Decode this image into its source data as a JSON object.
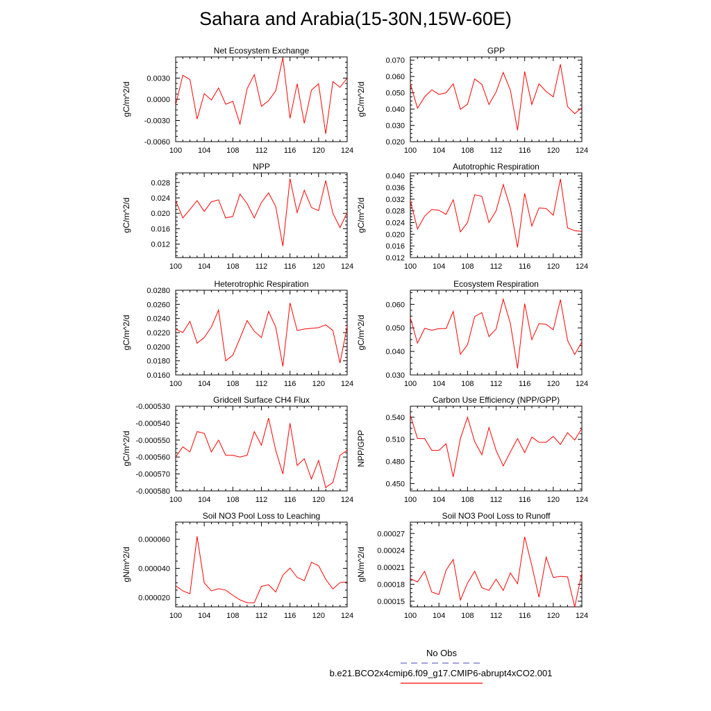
{
  "title": "Sahara and Arabia(15-30N,15W-60E)",
  "colors": {
    "series": "#ff0000",
    "obs": "#6a6ac8",
    "axis": "#000000"
  },
  "legend": {
    "obs_label": "No Obs",
    "case_label": "b.e21.BCO2x4cmip6.f09_g17.CMIP6-abrupt4xCO2.001"
  },
  "chart_data": [
    {
      "type": "line",
      "title": "Net Ecosystem Exchange",
      "ylabel": "gC/m^2/d",
      "xlabel": "",
      "xlim": [
        100,
        124
      ],
      "ylim": [
        -0.006,
        0.006
      ],
      "x_ticks": [
        "100",
        "104",
        "108",
        "112",
        "116",
        "120",
        "124"
      ],
      "y_ticks": [
        {
          "v": 0.003,
          "label": "0.0030"
        },
        {
          "v": 0.0,
          "label": "0.0000"
        },
        {
          "v": -0.003,
          "label": "-0.0030"
        },
        {
          "v": -0.006,
          "label": "-0.0060"
        }
      ],
      "x": [
        100,
        101,
        102,
        103,
        104,
        105,
        106,
        107,
        108,
        109,
        110,
        111,
        112,
        113,
        114,
        115,
        116,
        117,
        118,
        119,
        120,
        121,
        122,
        123,
        124
      ],
      "values": [
        -0.0008,
        0.0034,
        0.0028,
        -0.0028,
        0.0008,
        -0.0001,
        0.0016,
        -0.0007,
        -0.0003,
        -0.0035,
        0.0015,
        0.0035,
        -0.001,
        -0.0002,
        0.0012,
        0.0059,
        -0.0027,
        0.0022,
        -0.0034,
        0.0013,
        0.0022,
        -0.0049,
        0.0025,
        0.0017,
        0.003
      ]
    },
    {
      "type": "line",
      "title": "GPP",
      "ylabel": "gC/m^2/d",
      "xlabel": "",
      "xlim": [
        100,
        124
      ],
      "ylim": [
        0.02,
        0.072
      ],
      "x_ticks": [
        "100",
        "104",
        "108",
        "112",
        "116",
        "120",
        "124"
      ],
      "y_ticks": [
        {
          "v": 0.07,
          "label": "0.070"
        },
        {
          "v": 0.06,
          "label": "0.060"
        },
        {
          "v": 0.05,
          "label": "0.050"
        },
        {
          "v": 0.04,
          "label": "0.040"
        },
        {
          "v": 0.03,
          "label": "0.030"
        },
        {
          "v": 0.02,
          "label": "0.020"
        }
      ],
      "x": [
        100,
        101,
        102,
        103,
        104,
        105,
        106,
        107,
        108,
        109,
        110,
        111,
        112,
        113,
        114,
        115,
        116,
        117,
        118,
        119,
        120,
        121,
        122,
        123,
        124
      ],
      "values": [
        0.0555,
        0.0405,
        0.0475,
        0.0518,
        0.049,
        0.05,
        0.0555,
        0.0398,
        0.043,
        0.0585,
        0.0552,
        0.0428,
        0.0505,
        0.0625,
        0.0515,
        0.027,
        0.063,
        0.0428,
        0.0555,
        0.0508,
        0.0475,
        0.0675,
        0.0415,
        0.0372,
        0.0408
      ]
    },
    {
      "type": "line",
      "title": "NPP",
      "ylabel": "gC/m^2/d",
      "xlabel": "",
      "xlim": [
        100,
        124
      ],
      "ylim": [
        0.0085,
        0.0305
      ],
      "x_ticks": [
        "100",
        "104",
        "108",
        "112",
        "116",
        "120",
        "124"
      ],
      "y_ticks": [
        {
          "v": 0.028,
          "label": "0.028"
        },
        {
          "v": 0.024,
          "label": "0.024"
        },
        {
          "v": 0.02,
          "label": "0.020"
        },
        {
          "v": 0.016,
          "label": "0.016"
        },
        {
          "v": 0.012,
          "label": "0.012"
        }
      ],
      "x": [
        100,
        101,
        102,
        103,
        104,
        105,
        106,
        107,
        108,
        109,
        110,
        111,
        112,
        113,
        114,
        115,
        116,
        117,
        118,
        119,
        120,
        121,
        122,
        123,
        124
      ],
      "values": [
        0.0233,
        0.0188,
        0.021,
        0.0233,
        0.0205,
        0.023,
        0.0235,
        0.0188,
        0.0192,
        0.025,
        0.0225,
        0.0188,
        0.0228,
        0.0253,
        0.0218,
        0.0115,
        0.029,
        0.0202,
        0.026,
        0.0215,
        0.0207,
        0.0285,
        0.02,
        0.0163,
        0.0202
      ]
    },
    {
      "type": "line",
      "title": "Autotrophic Respiration",
      "ylabel": "gC/m^2/d",
      "xlabel": "",
      "xlim": [
        100,
        124
      ],
      "ylim": [
        0.012,
        0.041
      ],
      "x_ticks": [
        "100",
        "104",
        "108",
        "112",
        "116",
        "120",
        "124"
      ],
      "y_ticks": [
        {
          "v": 0.04,
          "label": "0.040"
        },
        {
          "v": 0.036,
          "label": "0.036"
        },
        {
          "v": 0.032,
          "label": "0.032"
        },
        {
          "v": 0.028,
          "label": "0.028"
        },
        {
          "v": 0.024,
          "label": "0.024"
        },
        {
          "v": 0.02,
          "label": "0.020"
        },
        {
          "v": 0.016,
          "label": "0.016"
        },
        {
          "v": 0.012,
          "label": "0.012"
        }
      ],
      "x": [
        100,
        101,
        102,
        103,
        104,
        105,
        106,
        107,
        108,
        109,
        110,
        111,
        112,
        113,
        114,
        115,
        116,
        117,
        118,
        119,
        120,
        121,
        122,
        123,
        124
      ],
      "values": [
        0.0315,
        0.0218,
        0.0262,
        0.0285,
        0.0282,
        0.0268,
        0.0318,
        0.0208,
        0.024,
        0.0335,
        0.033,
        0.024,
        0.028,
        0.037,
        0.029,
        0.0155,
        0.034,
        0.0228,
        0.029,
        0.0288,
        0.0265,
        0.039,
        0.0222,
        0.0212,
        0.021
      ]
    },
    {
      "type": "line",
      "title": "Heterotrophic Respiration",
      "ylabel": "gC/m^2/d",
      "xlabel": "",
      "xlim": [
        100,
        124
      ],
      "ylim": [
        0.016,
        0.028
      ],
      "x_ticks": [
        "100",
        "104",
        "108",
        "112",
        "116",
        "120",
        "124"
      ],
      "y_ticks": [
        {
          "v": 0.028,
          "label": "0.0280"
        },
        {
          "v": 0.026,
          "label": "0.0260"
        },
        {
          "v": 0.024,
          "label": "0.0240"
        },
        {
          "v": 0.022,
          "label": "0.0220"
        },
        {
          "v": 0.02,
          "label": "0.0200"
        },
        {
          "v": 0.018,
          "label": "0.0180"
        },
        {
          "v": 0.016,
          "label": "0.0160"
        }
      ],
      "x": [
        100,
        101,
        102,
        103,
        104,
        105,
        106,
        107,
        108,
        109,
        110,
        111,
        112,
        113,
        114,
        115,
        116,
        117,
        118,
        119,
        120,
        121,
        122,
        123,
        124
      ],
      "values": [
        0.0225,
        0.022,
        0.0236,
        0.0205,
        0.0213,
        0.0228,
        0.0252,
        0.018,
        0.0188,
        0.0212,
        0.0237,
        0.0222,
        0.0213,
        0.025,
        0.0228,
        0.0172,
        0.0262,
        0.0223,
        0.0225,
        0.0226,
        0.0227,
        0.0231,
        0.0223,
        0.0177,
        0.0229
      ]
    },
    {
      "type": "line",
      "title": "Ecosystem Respiration",
      "ylabel": "gC/m^2/d",
      "xlabel": "",
      "xlim": [
        100,
        124
      ],
      "ylim": [
        0.03,
        0.066
      ],
      "x_ticks": [
        "100",
        "104",
        "108",
        "112",
        "116",
        "120",
        "124"
      ],
      "y_ticks": [
        {
          "v": 0.06,
          "label": "0.060"
        },
        {
          "v": 0.05,
          "label": "0.050"
        },
        {
          "v": 0.04,
          "label": "0.040"
        },
        {
          "v": 0.03,
          "label": "0.030"
        }
      ],
      "x": [
        100,
        101,
        102,
        103,
        104,
        105,
        106,
        107,
        108,
        109,
        110,
        111,
        112,
        113,
        114,
        115,
        116,
        117,
        118,
        119,
        120,
        121,
        122,
        123,
        124
      ],
      "values": [
        0.0543,
        0.0435,
        0.0498,
        0.049,
        0.0497,
        0.0497,
        0.057,
        0.0388,
        0.0428,
        0.0548,
        0.0565,
        0.0463,
        0.0495,
        0.0622,
        0.0518,
        0.0328,
        0.0603,
        0.045,
        0.0518,
        0.0515,
        0.0492,
        0.062,
        0.0447,
        0.0387,
        0.044
      ]
    },
    {
      "type": "line",
      "title": "Gridcell Surface CH4 Flux",
      "ylabel": "gC/m^2/d",
      "xlabel": "",
      "xlim": [
        100,
        124
      ],
      "ylim": [
        -0.00058,
        -0.00053
      ],
      "x_ticks": [
        "100",
        "104",
        "108",
        "112",
        "116",
        "120",
        "124"
      ],
      "y_ticks": [
        {
          "v": -0.00053,
          "label": "-0.000530"
        },
        {
          "v": -0.00054,
          "label": "-0.000540"
        },
        {
          "v": -0.00055,
          "label": "-0.000550"
        },
        {
          "v": -0.00056,
          "label": "-0.000560"
        },
        {
          "v": -0.00057,
          "label": "-0.000570"
        },
        {
          "v": -0.00058,
          "label": "-0.000580"
        }
      ],
      "x": [
        100,
        101,
        102,
        103,
        104,
        105,
        106,
        107,
        108,
        109,
        110,
        111,
        112,
        113,
        114,
        115,
        116,
        117,
        118,
        119,
        120,
        121,
        122,
        123,
        124
      ],
      "values": [
        -0.00056,
        -0.000554,
        -0.000557,
        -0.000545,
        -0.000546,
        -0.000557,
        -0.00055,
        -0.000559,
        -0.000559,
        -0.00056,
        -0.000559,
        -0.000545,
        -0.000553,
        -0.000537,
        -0.000556,
        -0.00057,
        -0.00054,
        -0.000565,
        -0.000561,
        -0.000573,
        -0.000562,
        -0.000578,
        -0.000575,
        -0.000559,
        -0.000556
      ]
    },
    {
      "type": "line",
      "title": "Carbon Use Efficiency (NPP/GPP)",
      "ylabel": "NPP/GPP",
      "xlabel": "",
      "xlim": [
        100,
        124
      ],
      "ylim": [
        0.44,
        0.555
      ],
      "x_ticks": [
        "100",
        "104",
        "108",
        "112",
        "116",
        "120",
        "124"
      ],
      "y_ticks": [
        {
          "v": 0.54,
          "label": "0.540"
        },
        {
          "v": 0.51,
          "label": "0.510"
        },
        {
          "v": 0.48,
          "label": "0.480"
        },
        {
          "v": 0.45,
          "label": "0.450"
        }
      ],
      "x": [
        100,
        101,
        102,
        103,
        104,
        105,
        106,
        107,
        108,
        109,
        110,
        111,
        112,
        113,
        114,
        115,
        116,
        117,
        118,
        119,
        120,
        121,
        122,
        123,
        124
      ],
      "values": [
        0.543,
        0.511,
        0.511,
        0.495,
        0.495,
        0.504,
        0.459,
        0.511,
        0.54,
        0.507,
        0.489,
        0.526,
        0.495,
        0.474,
        0.493,
        0.511,
        0.492,
        0.513,
        0.506,
        0.506,
        0.514,
        0.503,
        0.519,
        0.509,
        0.525
      ]
    },
    {
      "type": "line",
      "title": "Soil NO3 Pool Loss to Leaching",
      "ylabel": "gN/m^2/d",
      "xlabel": "",
      "xlim": [
        100,
        124
      ],
      "ylim": [
        1.35e-05,
        7.18e-05
      ],
      "x_ticks": [
        "100",
        "104",
        "108",
        "112",
        "116",
        "120",
        "124"
      ],
      "y_ticks": [
        {
          "v": 6e-05,
          "label": "0.000060"
        },
        {
          "v": 4e-05,
          "label": "0.000040"
        },
        {
          "v": 2e-05,
          "label": "0.000020"
        }
      ],
      "x": [
        100,
        101,
        102,
        103,
        104,
        105,
        106,
        107,
        108,
        109,
        110,
        111,
        112,
        113,
        114,
        115,
        116,
        117,
        118,
        119,
        120,
        121,
        122,
        123,
        124
      ],
      "values": [
        2.8e-05,
        2.45e-05,
        2.25e-05,
        6.2e-05,
        3e-05,
        2.45e-05,
        2.6e-05,
        2.5e-05,
        2.15e-05,
        1.83e-05,
        1.63e-05,
        1.63e-05,
        2.76e-05,
        2.87e-05,
        2.37e-05,
        3.53e-05,
        4.02e-05,
        3.38e-05,
        3.15e-05,
        4.42e-05,
        4.18e-05,
        3.25e-05,
        2.58e-05,
        3.02e-05,
        3.07e-05
      ]
    },
    {
      "type": "line",
      "title": "Soil NO3 Pool Loss to Runoff",
      "ylabel": "gN/m^2/d",
      "xlabel": "",
      "xlim": [
        100,
        124
      ],
      "ylim": [
        0.00014,
        0.00029
      ],
      "x_ticks": [
        "100",
        "104",
        "108",
        "112",
        "116",
        "120",
        "124"
      ],
      "y_ticks": [
        {
          "v": 0.00027,
          "label": "0.00027"
        },
        {
          "v": 0.00024,
          "label": "0.00024"
        },
        {
          "v": 0.00021,
          "label": "0.00021"
        },
        {
          "v": 0.00018,
          "label": "0.00018"
        },
        {
          "v": 0.00015,
          "label": "0.00015"
        }
      ],
      "x": [
        100,
        101,
        102,
        103,
        104,
        105,
        106,
        107,
        108,
        109,
        110,
        111,
        112,
        113,
        114,
        115,
        116,
        117,
        118,
        119,
        120,
        121,
        122,
        123,
        124
      ],
      "values": [
        0.00019,
        0.000184,
        0.000203,
        0.000166,
        0.000162,
        0.000205,
        0.000224,
        0.000152,
        0.000182,
        0.000203,
        0.000174,
        0.000169,
        0.000189,
        0.000169,
        0.0002,
        0.000181,
        0.000264,
        0.000213,
        0.000157,
        0.000228,
        0.000192,
        0.000194,
        0.000193,
        0.00014,
        0.0002
      ]
    }
  ]
}
